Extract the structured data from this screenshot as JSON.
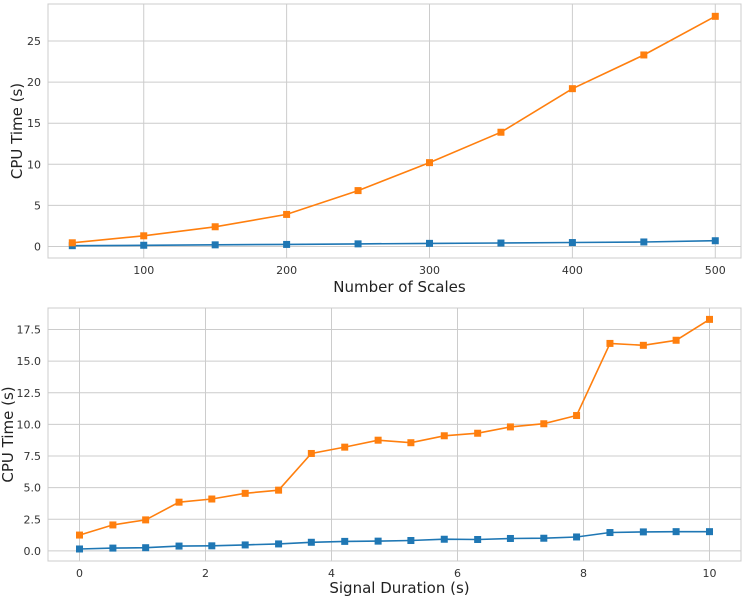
{
  "chart_data": [
    {
      "type": "line",
      "xlabel": "Number of Scales",
      "ylabel": "CPU Time (s)",
      "xlim": [
        33,
        518
      ],
      "ylim": [
        -1.4,
        29.5
      ],
      "xticks": [
        100,
        200,
        300,
        400,
        500
      ],
      "yticks": [
        0,
        5,
        10,
        15,
        20,
        25
      ],
      "grid": true,
      "legend": "none",
      "x": [
        50,
        100,
        150,
        200,
        250,
        300,
        350,
        400,
        450,
        500
      ],
      "series": [
        {
          "color": "#1f77b4",
          "marker": "square",
          "values": [
            0.1,
            0.15,
            0.2,
            0.25,
            0.32,
            0.38,
            0.42,
            0.48,
            0.55,
            0.7
          ]
        },
        {
          "color": "#ff7f0e",
          "marker": "square",
          "values": [
            0.45,
            1.3,
            2.4,
            3.9,
            6.8,
            10.2,
            13.9,
            19.2,
            23.3,
            28.0
          ]
        }
      ]
    },
    {
      "type": "line",
      "xlabel": "Signal Duration (s)",
      "ylabel": "CPU Time (s)",
      "xlim": [
        -0.5,
        10.5
      ],
      "ylim": [
        -0.8,
        19.2
      ],
      "xticks": [
        0,
        2,
        4,
        6,
        8,
        10
      ],
      "yticks": [
        0.0,
        2.5,
        5.0,
        7.5,
        10.0,
        12.5,
        15.0,
        17.5
      ],
      "ytick_labels": [
        "0.0",
        "2.5",
        "5.0",
        "7.5",
        "10.0",
        "12.5",
        "15.0",
        "17.5"
      ],
      "grid": true,
      "legend": "none",
      "x": [
        0,
        0.53,
        1.05,
        1.58,
        2.1,
        2.63,
        3.16,
        3.68,
        4.21,
        4.74,
        5.26,
        5.79,
        6.32,
        6.84,
        7.37,
        7.89,
        8.42,
        8.95,
        9.47,
        10
      ],
      "series": [
        {
          "color": "#1f77b4",
          "marker": "square",
          "values": [
            0.15,
            0.22,
            0.25,
            0.38,
            0.4,
            0.47,
            0.55,
            0.68,
            0.75,
            0.77,
            0.82,
            0.92,
            0.9,
            0.98,
            1.0,
            1.1,
            1.45,
            1.5,
            1.52,
            1.52
          ]
        },
        {
          "color": "#ff7f0e",
          "marker": "square",
          "values": [
            1.25,
            2.05,
            2.45,
            3.85,
            4.1,
            4.55,
            4.8,
            7.7,
            8.2,
            8.75,
            8.55,
            9.1,
            9.3,
            9.8,
            10.05,
            10.7,
            16.4,
            16.25,
            16.65,
            18.3
          ]
        }
      ]
    }
  ]
}
